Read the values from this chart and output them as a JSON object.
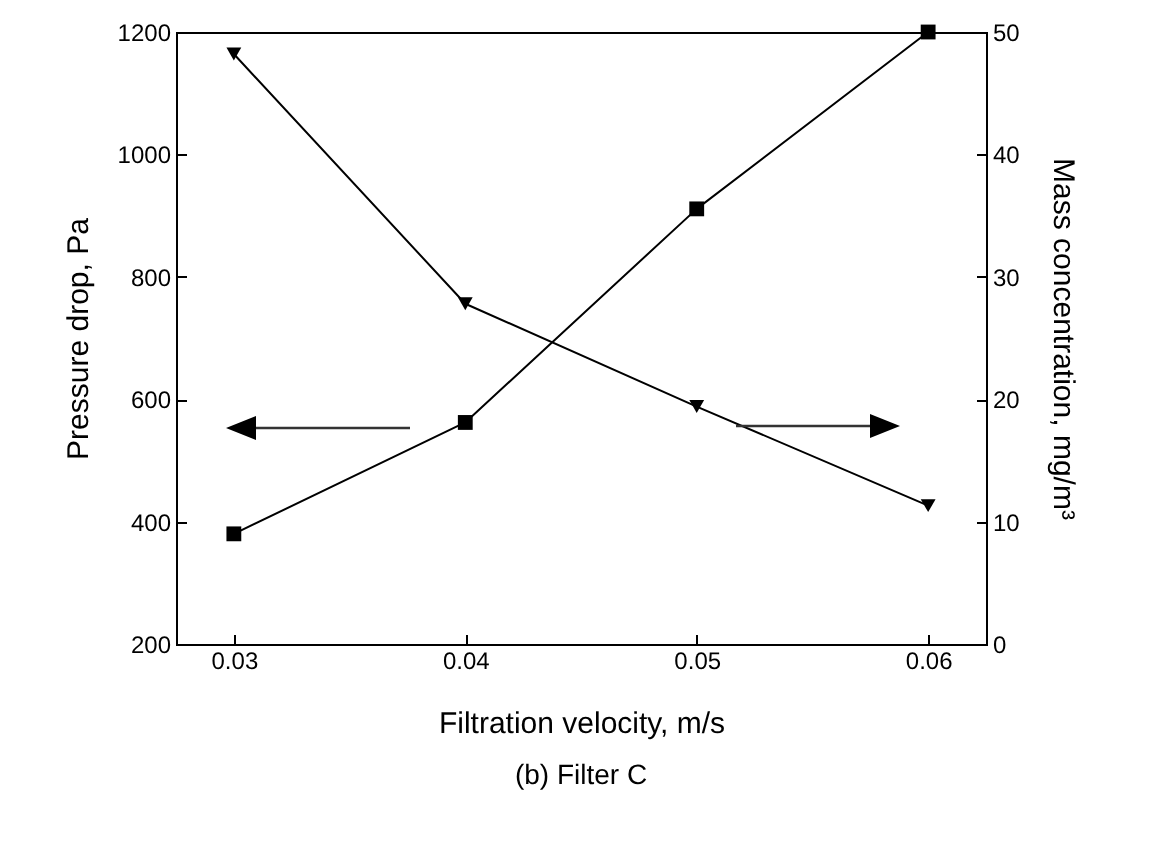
{
  "chart_data": {
    "type": "line",
    "title": "(b) Filter C",
    "xlabel": "Filtration velocity, m/s",
    "ylabel": "Pressure drop, Pa",
    "y2label": "Mass concentration, mg/m³",
    "x": [
      0.03,
      0.04,
      0.05,
      0.06
    ],
    "series": [
      {
        "color": "#000000",
        "marker": "square",
        "values": [
          380,
          562,
          911,
          1200
        ]
      },
      {
        "color": "#000000",
        "marker": "triangle",
        "axis": "y2",
        "values": [
          48.2,
          27.8,
          19.4,
          11.3
        ]
      }
    ],
    "xlim": [
      0.0275,
      0.0625
    ],
    "xticks": [
      0.03,
      0.04,
      0.05,
      0.06
    ],
    "ylim": [
      200,
      1200
    ],
    "yticks": [
      200,
      400,
      600,
      800,
      1000,
      1200
    ],
    "y2lim": [
      0,
      50
    ],
    "y2ticks": [
      0,
      10,
      20,
      30,
      40,
      50
    ],
    "grid": false
  }
}
